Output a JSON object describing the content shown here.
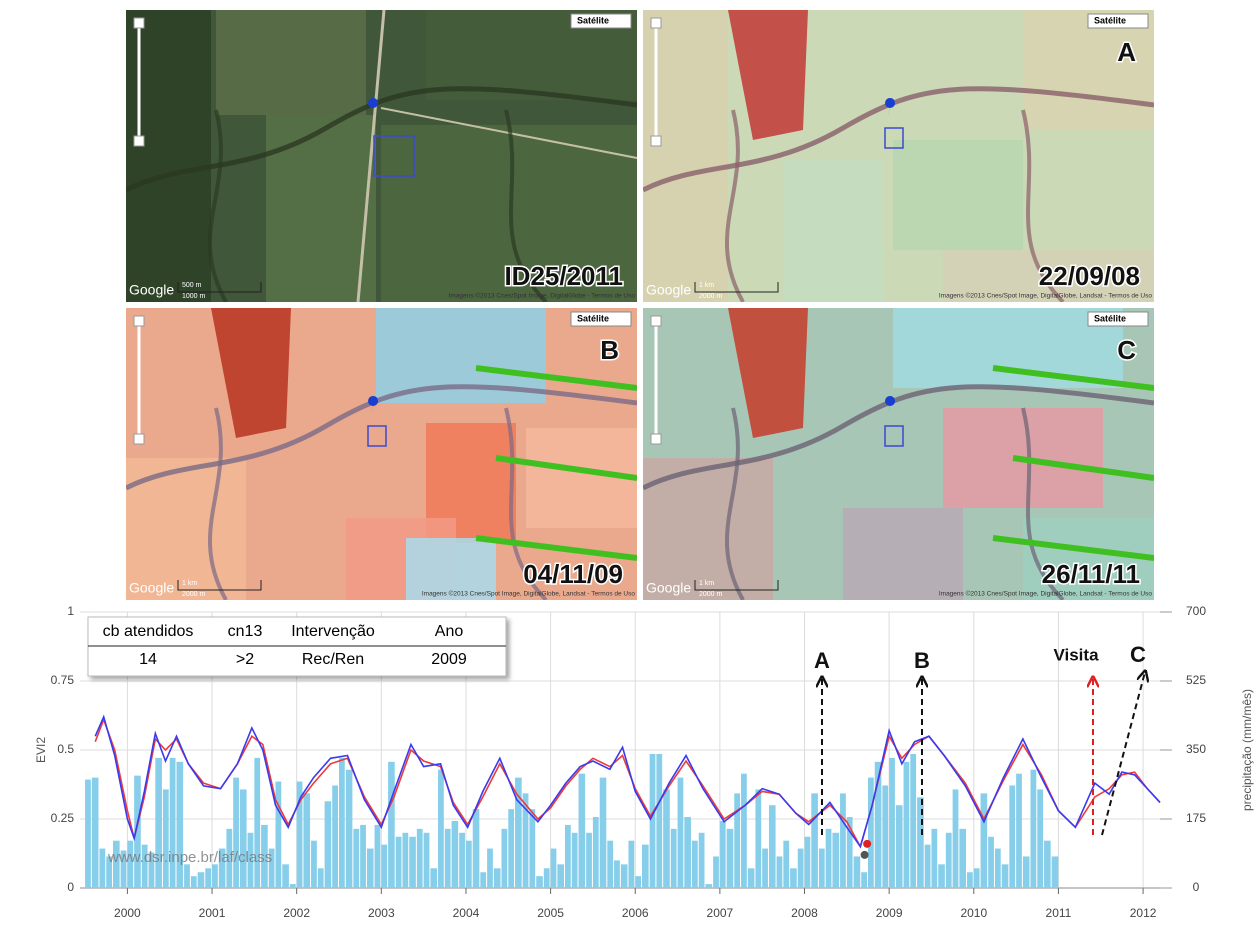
{
  "maps": [
    {
      "label": "ID25/2011",
      "map_type": "Satélite",
      "logo": "Google",
      "scale": [
        "500 m",
        "1000 m"
      ],
      "credits": "Imagens ©2013 Cnes/Spot Image, DigitalGlobe - Termos de Uso"
    },
    {
      "label": "22/09/08",
      "letter": "A",
      "map_type": "Satélite",
      "logo": "Google",
      "scale": [
        "1 km",
        "2000 m"
      ],
      "credits": "Imagens ©2013 Cnes/Spot Image, DigitalGlobe, Landsat - Termos de Uso"
    },
    {
      "label": "04/11/09",
      "letter": "B",
      "map_type": "Satélite",
      "logo": "Google",
      "scale": [
        "1 km",
        "2000 m"
      ],
      "credits": "Imagens ©2013 Cnes/Spot Image, DigitalGlobe, Landsat - Termos de Uso"
    },
    {
      "label": "26/11/11",
      "letter": "C",
      "map_type": "Satélite",
      "logo": "Google",
      "scale": [
        "1 km",
        "2000 m"
      ],
      "credits": "Imagens ©2013 Cnes/Spot Image, DigitalGlobe, Landsat - Termos de Uso"
    }
  ],
  "chart_data": {
    "type": "line",
    "ylabel": "EVI2",
    "y2label": "precipitação (mm/mês)",
    "watermark": "www.dsr.inpe.br/laf/class",
    "xlim": [
      1999.44,
      2012.2
    ],
    "xticks": [
      2000,
      2001,
      2002,
      2003,
      2004,
      2005,
      2006,
      2007,
      2008,
      2009,
      2010,
      2011,
      2012
    ],
    "ylim": [
      0,
      1
    ],
    "yticks": [
      0,
      0.25,
      0.5,
      0.75,
      1
    ],
    "y2lim": [
      0,
      700
    ],
    "y2ticks": [
      0,
      175,
      350,
      525,
      700
    ],
    "grid": true,
    "table": {
      "header": [
        "cb atendidos",
        "cn13",
        "Intervenção",
        "Ano"
      ],
      "rows": [
        [
          "14",
          ">2",
          "Rec/Ren",
          "2009"
        ]
      ]
    },
    "annotations": [
      "A",
      "B",
      "Visita",
      "C"
    ],
    "series": [
      {
        "type": "bar",
        "axis": "y2",
        "color": "#87ceeb",
        "x": [
          1999.5,
          1999.58,
          1999.67,
          1999.75,
          1999.83,
          1999.92,
          2000,
          2000.08,
          2000.17,
          2000.25,
          2000.33,
          2000.42,
          2000.5,
          2000.58,
          2000.67,
          2000.75,
          2000.83,
          2000.92,
          2001,
          2001.08,
          2001.17,
          2001.25,
          2001.33,
          2001.42,
          2001.5,
          2001.58,
          2001.67,
          2001.75,
          2001.83,
          2001.92,
          2002,
          2002.08,
          2002.17,
          2002.25,
          2002.33,
          2002.42,
          2002.5,
          2002.58,
          2002.67,
          2002.75,
          2002.83,
          2002.92,
          2003,
          2003.08,
          2003.17,
          2003.25,
          2003.33,
          2003.42,
          2003.5,
          2003.58,
          2003.67,
          2003.75,
          2003.83,
          2003.92,
          2004,
          2004.08,
          2004.17,
          2004.25,
          2004.33,
          2004.42,
          2004.5,
          2004.58,
          2004.67,
          2004.75,
          2004.83,
          2004.92,
          2005,
          2005.08,
          2005.17,
          2005.25,
          2005.33,
          2005.42,
          2005.5,
          2005.58,
          2005.67,
          2005.75,
          2005.83,
          2005.92,
          2006,
          2006.08,
          2006.17,
          2006.25,
          2006.33,
          2006.42,
          2006.5,
          2006.58,
          2006.67,
          2006.75,
          2006.83,
          2006.92,
          2007,
          2007.08,
          2007.17,
          2007.25,
          2007.33,
          2007.42,
          2007.5,
          2007.58,
          2007.67,
          2007.75,
          2007.83,
          2007.92,
          2008,
          2008.08,
          2008.17,
          2008.25,
          2008.33,
          2008.42,
          2008.5,
          2008.58,
          2008.67,
          2008.75,
          2008.83,
          2008.92,
          2009,
          2009.08,
          2009.17,
          2009.25,
          2009.33,
          2009.42,
          2009.5,
          2009.58,
          2009.67,
          2009.75,
          2009.83,
          2009.92,
          2010,
          2010.08,
          2010.17,
          2010.25,
          2010.33,
          2010.42,
          2010.5,
          2010.58,
          2010.67,
          2010.75,
          2010.83,
          2010.92
        ],
        "values": [
          275,
          280,
          100,
          80,
          120,
          95,
          120,
          285,
          110,
          90,
          330,
          250,
          330,
          320,
          60,
          30,
          40,
          50,
          60,
          100,
          150,
          280,
          250,
          140,
          330,
          160,
          100,
          270,
          60,
          10,
          270,
          240,
          120,
          50,
          220,
          260,
          330,
          300,
          150,
          160,
          100,
          160,
          110,
          320,
          130,
          140,
          130,
          150,
          140,
          50,
          300,
          150,
          170,
          140,
          120,
          200,
          40,
          100,
          50,
          150,
          200,
          280,
          240,
          200,
          30,
          50,
          100,
          60,
          160,
          140,
          290,
          140,
          180,
          280,
          120,
          70,
          60,
          120,
          30,
          110,
          340,
          340,
          250,
          150,
          280,
          180,
          120,
          140,
          10,
          80,
          170,
          150,
          240,
          290,
          50,
          250,
          100,
          210,
          80,
          120,
          50,
          100,
          130,
          240,
          100,
          150,
          140,
          240,
          180,
          80,
          40,
          280,
          320,
          260,
          330,
          210,
          320,
          340,
          230,
          110,
          150,
          60,
          140,
          250,
          150,
          40,
          50,
          240,
          130,
          100,
          60,
          260,
          290,
          80,
          300,
          250,
          120,
          80
        ]
      },
      {
        "type": "line",
        "color": "#ee3a3a",
        "x": [
          1999.62,
          1999.72,
          1999.85,
          2000,
          2000.08,
          2000.2,
          2000.33,
          2000.45,
          2000.58,
          2000.72,
          2000.9,
          2001.1,
          2001.3,
          2001.47,
          2001.6,
          2001.75,
          2001.9,
          2002.05,
          2002.2,
          2002.4,
          2002.6,
          2002.8,
          2003,
          2003.15,
          2003.35,
          2003.5,
          2003.7,
          2003.85,
          2004.02,
          2004.2,
          2004.4,
          2004.6,
          2004.85,
          2005,
          2005.18,
          2005.35,
          2005.5,
          2005.7,
          2005.85,
          2006,
          2006.18,
          2006.4,
          2006.6,
          2006.8,
          2007.05,
          2007.3,
          2007.5,
          2007.7,
          2007.9,
          2008.05,
          2008.3,
          2008.5,
          2008.66,
          2008.8,
          2009,
          2009.15,
          2009.3,
          2009.47,
          2009.65,
          2009.9,
          2010.12,
          2010.35,
          2010.58,
          2010.8,
          2011,
          2011.2,
          2011.43,
          2011.6,
          2011.75,
          2011.9,
          2012.05,
          2012.2
        ],
        "values": [
          0.53,
          0.61,
          0.5,
          0.28,
          0.18,
          0.33,
          0.54,
          0.5,
          0.54,
          0.45,
          0.38,
          0.36,
          0.45,
          0.55,
          0.52,
          0.32,
          0.23,
          0.32,
          0.38,
          0.45,
          0.47,
          0.33,
          0.23,
          0.33,
          0.5,
          0.46,
          0.44,
          0.31,
          0.23,
          0.33,
          0.45,
          0.34,
          0.25,
          0.29,
          0.37,
          0.43,
          0.47,
          0.44,
          0.48,
          0.36,
          0.26,
          0.37,
          0.46,
          0.37,
          0.25,
          0.3,
          0.35,
          0.34,
          0.27,
          0.24,
          0.3,
          0.24,
          0.15,
          0.3,
          0.55,
          0.47,
          0.52,
          0.55,
          0.48,
          0.38,
          0.25,
          0.39,
          0.52,
          0.41,
          0.28,
          0.22,
          0.33,
          0.36,
          0.41,
          0.42,
          0.36,
          0.31
        ]
      },
      {
        "type": "line",
        "color": "#3a3af0",
        "x": [
          1999.62,
          1999.72,
          1999.85,
          2000,
          2000.08,
          2000.2,
          2000.33,
          2000.45,
          2000.58,
          2000.72,
          2000.9,
          2001.1,
          2001.3,
          2001.47,
          2001.6,
          2001.75,
          2001.9,
          2002.05,
          2002.2,
          2002.4,
          2002.6,
          2002.8,
          2003,
          2003.15,
          2003.35,
          2003.5,
          2003.7,
          2003.85,
          2004.02,
          2004.2,
          2004.4,
          2004.6,
          2004.85,
          2005,
          2005.18,
          2005.35,
          2005.5,
          2005.7,
          2005.85,
          2006,
          2006.18,
          2006.4,
          2006.6,
          2006.8,
          2007.05,
          2007.3,
          2007.5,
          2007.7,
          2007.9,
          2008.05,
          2008.3,
          2008.5,
          2008.66,
          2008.8,
          2009,
          2009.15,
          2009.3,
          2009.47,
          2009.65,
          2009.9,
          2010.12,
          2010.35,
          2010.58,
          2010.8,
          2011,
          2011.2,
          2011.43,
          2011.6,
          2011.75,
          2011.9,
          2012.05,
          2012.2
        ],
        "values": [
          0.55,
          0.62,
          0.48,
          0.25,
          0.18,
          0.35,
          0.56,
          0.46,
          0.55,
          0.45,
          0.37,
          0.36,
          0.45,
          0.58,
          0.5,
          0.3,
          0.22,
          0.33,
          0.4,
          0.47,
          0.48,
          0.32,
          0.22,
          0.35,
          0.52,
          0.44,
          0.45,
          0.3,
          0.22,
          0.35,
          0.47,
          0.32,
          0.24,
          0.3,
          0.38,
          0.44,
          0.46,
          0.43,
          0.51,
          0.35,
          0.25,
          0.38,
          0.48,
          0.36,
          0.24,
          0.3,
          0.36,
          0.34,
          0.27,
          0.23,
          0.31,
          0.22,
          0.15,
          0.3,
          0.57,
          0.45,
          0.53,
          0.55,
          0.48,
          0.37,
          0.24,
          0.4,
          0.54,
          0.4,
          0.28,
          0.22,
          0.38,
          0.34,
          0.42,
          0.41,
          0.36,
          0.31
        ]
      },
      {
        "type": "scatter",
        "color": "#555555",
        "x": [
          2008.71
        ],
        "values": [
          0.12
        ]
      },
      {
        "type": "scatter",
        "color": "#e02020",
        "x": [
          2008.74
        ],
        "values": [
          0.16
        ]
      }
    ]
  }
}
